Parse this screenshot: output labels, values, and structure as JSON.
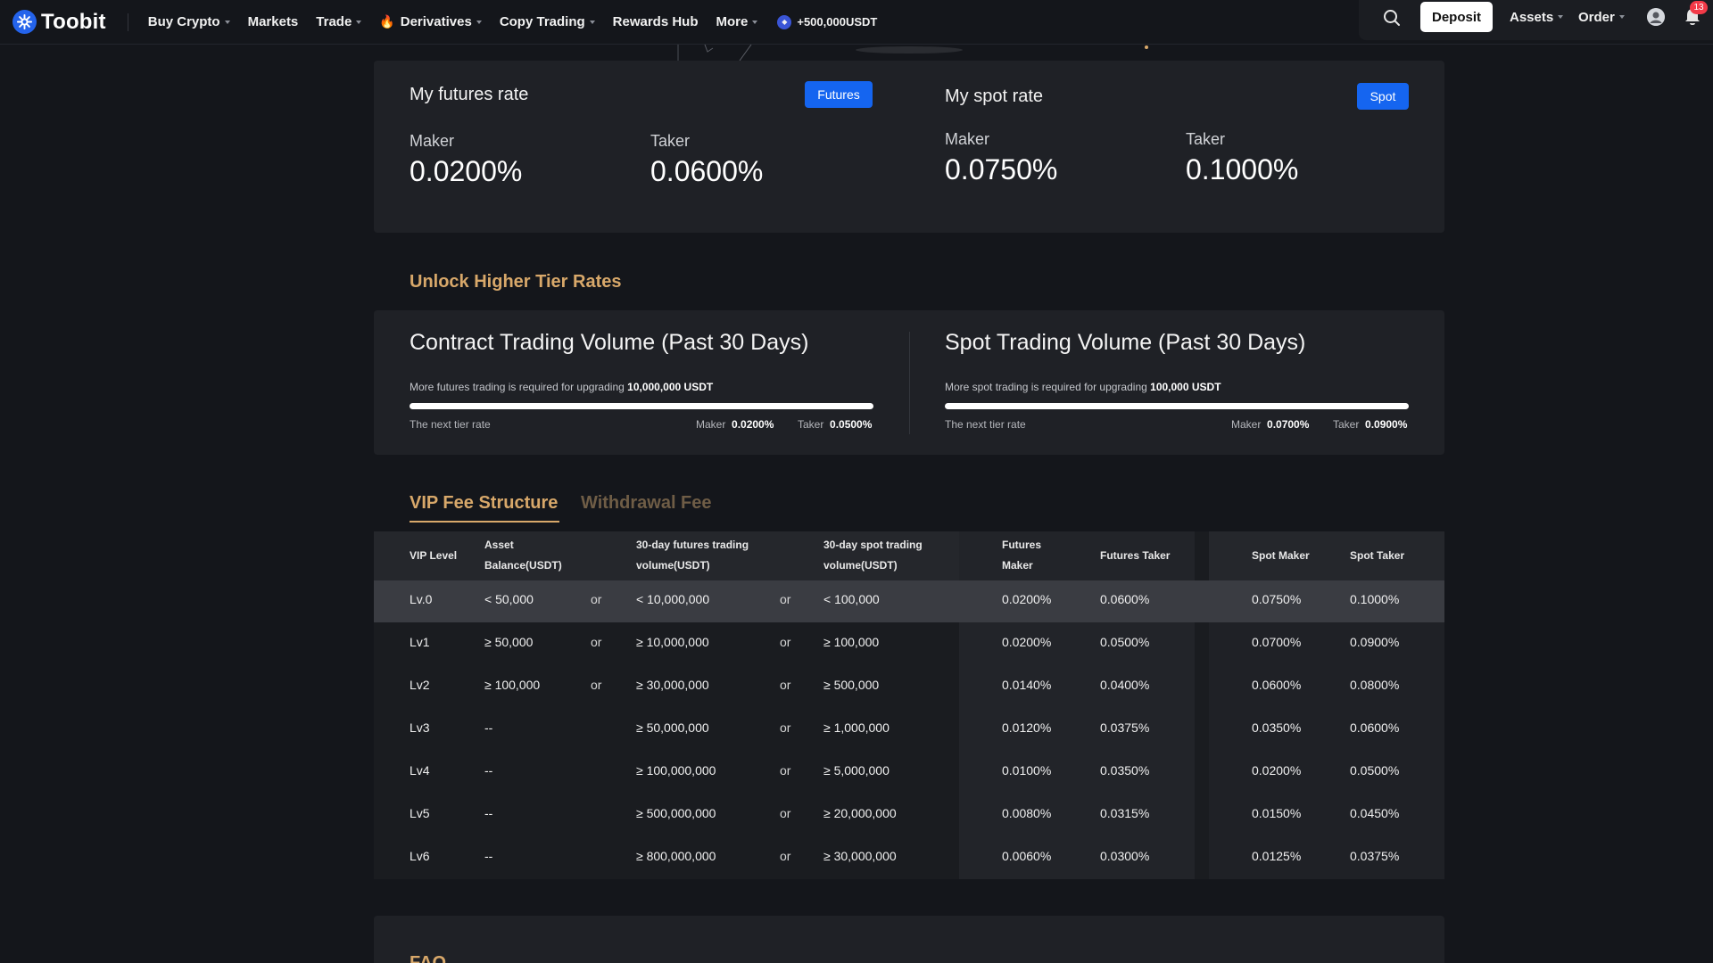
{
  "nav": {
    "brand": "Toobit",
    "items": [
      {
        "label": "Buy Crypto",
        "caret": true
      },
      {
        "label": "Markets",
        "caret": false
      },
      {
        "label": "Trade",
        "caret": true
      },
      {
        "label": "Derivatives",
        "caret": true,
        "fire": true
      },
      {
        "label": "Copy Trading",
        "caret": true
      },
      {
        "label": "Rewards Hub",
        "caret": false
      },
      {
        "label": "More",
        "caret": true
      }
    ],
    "promo": "+500,000USDT",
    "deposit": "Deposit",
    "assets": "Assets",
    "order": "Order",
    "notifications": "13"
  },
  "futures_rate": {
    "title": "My futures rate",
    "button": "Futures",
    "maker_label": "Maker",
    "maker_value": "0.0200%",
    "taker_label": "Taker",
    "taker_value": "0.0600%"
  },
  "spot_rate": {
    "title": "My spot rate",
    "button": "Spot",
    "maker_label": "Maker",
    "maker_value": "0.0750%",
    "taker_label": "Taker",
    "taker_value": "0.1000%"
  },
  "unlock": {
    "title": "Unlock Higher Tier Rates",
    "contract": {
      "title": "Contract Trading Volume (Past 30 Days)",
      "desc": "More futures trading is required for upgrading",
      "amount": "10,000,000 USDT",
      "progress": 0,
      "next_tier": "The next tier rate",
      "maker_label": "Maker",
      "maker_value": "0.0200%",
      "taker_label": "Taker",
      "taker_value": "0.0500%"
    },
    "spot": {
      "title": "Spot Trading Volume (Past 30 Days)",
      "desc": "More spot trading is required for upgrading",
      "amount": "100,000 USDT",
      "progress": 0,
      "next_tier": "The next tier rate",
      "maker_label": "Maker",
      "maker_value": "0.0700%",
      "taker_label": "Taker",
      "taker_value": "0.0900%"
    }
  },
  "tabs": {
    "vip": "VIP Fee Structure",
    "withdrawal": "Withdrawal Fee"
  },
  "table": {
    "headers": {
      "vip_level": "VIP Level",
      "asset_balance_1": "Asset",
      "asset_balance_2": "Balance(USDT)",
      "futures_vol_1": "30-day futures trading",
      "futures_vol_2": "volume(USDT)",
      "spot_vol_1": "30-day spot trading",
      "spot_vol_2": "volume(USDT)",
      "futures_maker_1": "Futures",
      "futures_maker_2": "Maker",
      "futures_taker": "Futures Taker",
      "spot_maker": "Spot Maker",
      "spot_taker": "Spot Taker"
    },
    "rows": [
      {
        "level": "Lv.0",
        "balance": "< 50,000",
        "or1": "or",
        "futures_vol": "< 10,000,000",
        "or2": "or",
        "spot_vol": "< 100,000",
        "f_maker": "0.0200%",
        "f_taker": "0.0600%",
        "s_maker": "0.0750%",
        "s_taker": "0.1000%"
      },
      {
        "level": "Lv1",
        "balance": "≥ 50,000",
        "or1": "or",
        "futures_vol": "≥ 10,000,000",
        "or2": "or",
        "spot_vol": "≥ 100,000",
        "f_maker": "0.0200%",
        "f_taker": "0.0500%",
        "s_maker": "0.0700%",
        "s_taker": "0.0900%"
      },
      {
        "level": "Lv2",
        "balance": "≥ 100,000",
        "or1": "or",
        "futures_vol": "≥ 30,000,000",
        "or2": "or",
        "spot_vol": "≥ 500,000",
        "f_maker": "0.0140%",
        "f_taker": "0.0400%",
        "s_maker": "0.0600%",
        "s_taker": "0.0800%"
      },
      {
        "level": "Lv3",
        "balance": "--",
        "or1": "",
        "futures_vol": "≥ 50,000,000",
        "or2": "or",
        "spot_vol": "≥ 1,000,000",
        "f_maker": "0.0120%",
        "f_taker": "0.0375%",
        "s_maker": "0.0350%",
        "s_taker": "0.0600%"
      },
      {
        "level": "Lv4",
        "balance": "--",
        "or1": "",
        "futures_vol": "≥ 100,000,000",
        "or2": "or",
        "spot_vol": "≥ 5,000,000",
        "f_maker": "0.0100%",
        "f_taker": "0.0350%",
        "s_maker": "0.0200%",
        "s_taker": "0.0500%"
      },
      {
        "level": "Lv5",
        "balance": "--",
        "or1": "",
        "futures_vol": "≥ 500,000,000",
        "or2": "or",
        "spot_vol": "≥ 20,000,000",
        "f_maker": "0.0080%",
        "f_taker": "0.0315%",
        "s_maker": "0.0150%",
        "s_taker": "0.0450%"
      },
      {
        "level": "Lv6",
        "balance": "--",
        "or1": "",
        "futures_vol": "≥ 800,000,000",
        "or2": "or",
        "spot_vol": "≥ 30,000,000",
        "f_maker": "0.0060%",
        "f_taker": "0.0300%",
        "s_maker": "0.0125%",
        "s_taker": "0.0375%"
      }
    ]
  },
  "faq": {
    "title": "FAQ"
  }
}
